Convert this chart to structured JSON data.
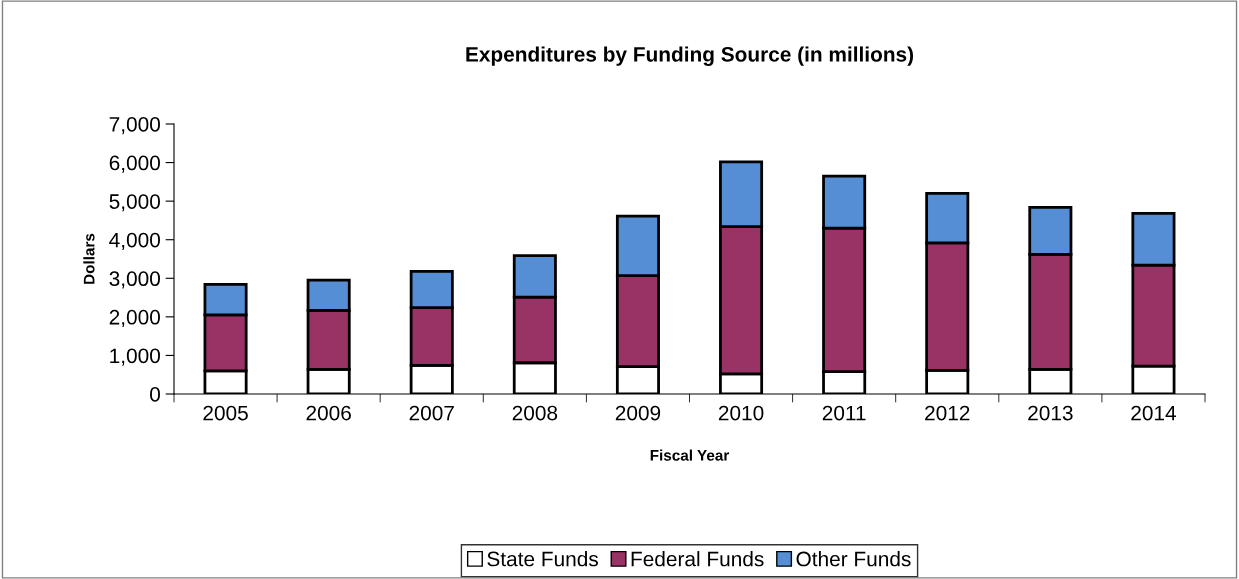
{
  "chart_data": {
    "type": "bar",
    "title": "Expenditures by Funding Source (in millions)",
    "xlabel": "Fiscal Year",
    "ylabel": "Dollars",
    "categories": [
      "2005",
      "2006",
      "2007",
      "2008",
      "2009",
      "2010",
      "2011",
      "2012",
      "2013",
      "2014"
    ],
    "stacked": true,
    "series": [
      {
        "name": "State Funds",
        "color": "#ffffff",
        "values": [
          600,
          640,
          740,
          810,
          710,
          520,
          580,
          610,
          640,
          720
        ]
      },
      {
        "name": "Federal Funds",
        "color": "#993366",
        "values": [
          1450,
          1530,
          1500,
          1700,
          2360,
          3820,
          3720,
          3310,
          2980,
          2620
        ]
      },
      {
        "name": "Other Funds",
        "color": "#558ed5",
        "values": [
          790,
          780,
          940,
          1080,
          1540,
          1680,
          1350,
          1280,
          1220,
          1340
        ]
      }
    ],
    "ylim": [
      0,
      7000
    ],
    "yticks": [
      {
        "value": 0,
        "label": "0"
      },
      {
        "value": 1000,
        "label": "1,000"
      },
      {
        "value": 2000,
        "label": "2,000"
      },
      {
        "value": 3000,
        "label": "3,000"
      },
      {
        "value": 4000,
        "label": "4,000"
      },
      {
        "value": 5000,
        "label": "5,000"
      },
      {
        "value": 6000,
        "label": "6,000"
      },
      {
        "value": 7000,
        "label": "7,000"
      }
    ],
    "grid": false,
    "legend": "bottom"
  }
}
